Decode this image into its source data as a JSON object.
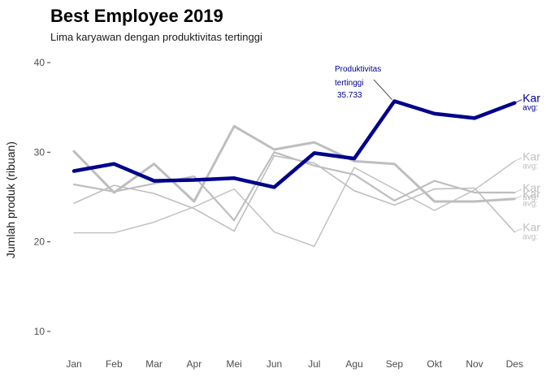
{
  "chart_data": {
    "type": "line",
    "title": "Best Employee 2019",
    "subtitle": "Lima karyawan dengan produktivitas tertinggi",
    "xlabel": "",
    "ylabel": "Jumlah produk (ribuan)",
    "categories": [
      "Jan",
      "Feb",
      "Mar",
      "Apr",
      "Mei",
      "Jun",
      "Jul",
      "Agu",
      "Sep",
      "Okt",
      "Nov",
      "Des"
    ],
    "ylim": [
      8,
      41
    ],
    "yticks": [
      10,
      20,
      30,
      40
    ],
    "grid": false,
    "highlight_color": "#00008b",
    "muted_color": "#bebebe",
    "series": [
      {
        "label": "Kar",
        "avg_label": "avg:",
        "highlight": true,
        "values": [
          27.9,
          28.7,
          26.8,
          26.9,
          27.1,
          26.1,
          29.9,
          29.3,
          35.7,
          34.3,
          33.8,
          35.5
        ]
      },
      {
        "label": "Kar",
        "avg_label": "avg:",
        "highlight": false,
        "values": [
          30.1,
          25.5,
          28.7,
          24.5,
          32.9,
          30.3,
          31.1,
          29.0,
          28.7,
          24.5,
          24.5,
          24.8
        ]
      },
      {
        "label": "Kar",
        "avg_label": "avg:",
        "highlight": false,
        "values": [
          26.4,
          25.6,
          26.5,
          27.3,
          22.4,
          30.0,
          28.5,
          27.5,
          24.6,
          26.8,
          25.5,
          25.5
        ]
      },
      {
        "label": "Kar",
        "avg_label": "avg:",
        "highlight": false,
        "values": [
          24.3,
          26.3,
          25.4,
          23.7,
          21.2,
          29.6,
          28.8,
          25.7,
          24.1,
          25.9,
          26.0,
          21.1
        ]
      },
      {
        "label": "Kar",
        "avg_label": "avg:",
        "highlight": false,
        "values": [
          21.0,
          21.0,
          22.2,
          23.9,
          25.9,
          21.1,
          19.5,
          28.3,
          25.9,
          23.5,
          25.8,
          29.0
        ]
      }
    ],
    "annotation": {
      "lines": [
        "Produktivitas",
        "tertinggi",
        "35.733"
      ],
      "category": "Sep",
      "value": 35.7
    }
  }
}
